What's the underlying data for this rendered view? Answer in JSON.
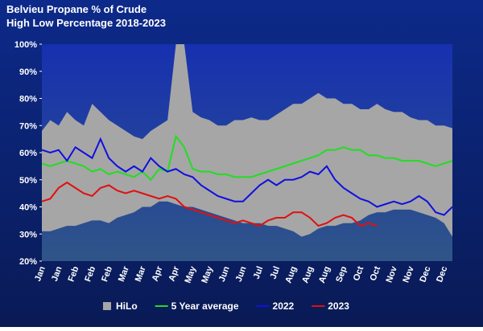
{
  "chart_data": {
    "type": "line",
    "title": "Belvieu Propane % of Crude",
    "subtitle": "High Low Percentage 2018-2023",
    "categories": [
      "Jan",
      null,
      "Jan",
      null,
      "Feb",
      null,
      "Feb",
      null,
      "Feb",
      null,
      "Mar",
      null,
      "Mar",
      null,
      "Apr",
      null,
      "Apr",
      null,
      "May",
      null,
      "May",
      null,
      "Jun",
      null,
      "Jun",
      null,
      "Jul",
      null,
      "Jul",
      null,
      "Aug",
      null,
      "Aug",
      null,
      "Aug",
      null,
      "Sep",
      null,
      "Oct",
      null,
      "Oct",
      null,
      "Nov",
      null,
      "Nov",
      null,
      "Dec",
      null,
      "Dec",
      null
    ],
    "ylim": [
      20,
      100
    ],
    "yticks": [
      {
        "value": 20,
        "label": "20%"
      },
      {
        "value": 30,
        "label": "30%"
      },
      {
        "value": 40,
        "label": "40%"
      },
      {
        "value": 50,
        "label": "50%"
      },
      {
        "value": 60,
        "label": "60%"
      },
      {
        "value": 70,
        "label": "70%"
      },
      {
        "value": 80,
        "label": "80%"
      },
      {
        "value": 90,
        "label": "90%"
      },
      {
        "value": 100,
        "label": "100%"
      }
    ],
    "series": [
      {
        "name": "HiLo",
        "color": "#a6a6a6",
        "values": [
          68,
          72,
          70,
          75,
          72,
          70,
          78,
          75,
          72,
          70,
          68,
          66,
          65,
          68,
          70,
          72,
          100,
          100,
          75,
          73,
          72,
          70,
          70,
          72,
          72,
          73,
          72,
          72,
          74,
          76,
          78,
          78,
          80,
          82,
          80,
          80,
          78,
          78,
          76,
          76,
          78,
          76,
          75,
          75,
          73,
          72,
          72,
          70,
          70,
          69
        ],
        "low": [
          31,
          31,
          32,
          33,
          33,
          34,
          35,
          35,
          34,
          36,
          37,
          38,
          40,
          40,
          42,
          42,
          41,
          40,
          40,
          39,
          38,
          37,
          36,
          35,
          34,
          34,
          34,
          33,
          33,
          32,
          31,
          29,
          30,
          32,
          33,
          33,
          34,
          34,
          35,
          37,
          38,
          38,
          39,
          39,
          39,
          38,
          37,
          36,
          34,
          29
        ]
      },
      {
        "name": "5 Year average",
        "color": "#22dd22",
        "values": [
          56,
          55,
          56,
          57,
          56,
          55,
          53,
          54,
          52,
          53,
          52,
          51,
          53,
          50,
          54,
          53,
          66,
          62,
          54,
          53,
          53,
          52,
          52,
          51,
          51,
          51,
          52,
          53,
          54,
          55,
          56,
          57,
          58,
          59,
          61,
          61,
          62,
          61,
          61,
          59,
          59,
          58,
          58,
          57,
          57,
          57,
          56,
          55,
          56,
          57
        ]
      },
      {
        "name": "2022",
        "color": "#1010e0",
        "values": [
          61,
          60,
          61,
          57,
          62,
          60,
          58,
          65,
          58,
          55,
          53,
          55,
          53,
          58,
          55,
          53,
          54,
          52,
          51,
          48,
          46,
          44,
          43,
          42,
          42,
          45,
          48,
          50,
          48,
          50,
          50,
          51,
          53,
          52,
          55,
          50,
          47,
          45,
          43,
          42,
          40,
          41,
          42,
          41,
          42,
          44,
          42,
          38,
          37,
          40
        ]
      },
      {
        "name": "2023",
        "color": "#e01010",
        "values": [
          42,
          43,
          47,
          49,
          47,
          45,
          44,
          47,
          48,
          46,
          45,
          46,
          45,
          44,
          43,
          44,
          43,
          40,
          39,
          38,
          37,
          36,
          35,
          34,
          35,
          34,
          33,
          35,
          36,
          36,
          38,
          38,
          36,
          33,
          34,
          36,
          37,
          36,
          33,
          34,
          33,
          null,
          null,
          null,
          null,
          null,
          null,
          null,
          null,
          null
        ]
      }
    ]
  }
}
